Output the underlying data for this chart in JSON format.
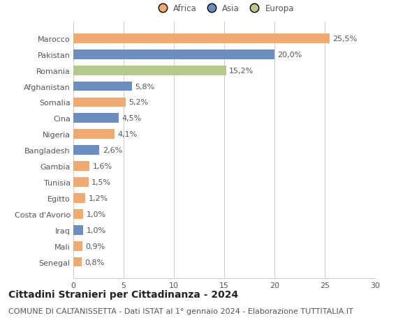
{
  "countries": [
    "Senegal",
    "Mali",
    "Iraq",
    "Costa d'Avorio",
    "Egitto",
    "Tunisia",
    "Gambia",
    "Bangladesh",
    "Nigeria",
    "Cina",
    "Somalia",
    "Afghanistan",
    "Romania",
    "Pakistan",
    "Marocco"
  ],
  "values": [
    0.8,
    0.9,
    1.0,
    1.0,
    1.2,
    1.5,
    1.6,
    2.6,
    4.1,
    4.5,
    5.2,
    5.8,
    15.2,
    20.0,
    25.5
  ],
  "labels": [
    "0,8%",
    "0,9%",
    "1,0%",
    "1,0%",
    "1,2%",
    "1,5%",
    "1,6%",
    "2,6%",
    "4,1%",
    "4,5%",
    "5,2%",
    "5,8%",
    "15,2%",
    "20,0%",
    "25,5%"
  ],
  "colors": [
    "#f0a96e",
    "#f0a96e",
    "#6b8dbf",
    "#f0a96e",
    "#f0a96e",
    "#f0a96e",
    "#f0a96e",
    "#6b8dbf",
    "#f0a96e",
    "#6b8dbf",
    "#f0a96e",
    "#6b8dbf",
    "#b5c98a",
    "#6b8dbf",
    "#f0a96e"
  ],
  "legend_labels": [
    "Africa",
    "Asia",
    "Europa"
  ],
  "legend_colors": [
    "#f0a96e",
    "#6b8dbf",
    "#b5c98a"
  ],
  "xlim": [
    0,
    30
  ],
  "xticks": [
    0,
    5,
    10,
    15,
    20,
    25,
    30
  ],
  "title": "Cittadini Stranieri per Cittadinanza - 2024",
  "subtitle": "COMUNE DI CALTANISSETTA - Dati ISTAT al 1° gennaio 2024 - Elaborazione TUTTITALIA.IT",
  "title_fontsize": 10,
  "subtitle_fontsize": 8,
  "label_fontsize": 8,
  "tick_fontsize": 8,
  "legend_fontsize": 8.5,
  "bar_height": 0.6,
  "background_color": "#ffffff",
  "grid_color": "#cccccc"
}
